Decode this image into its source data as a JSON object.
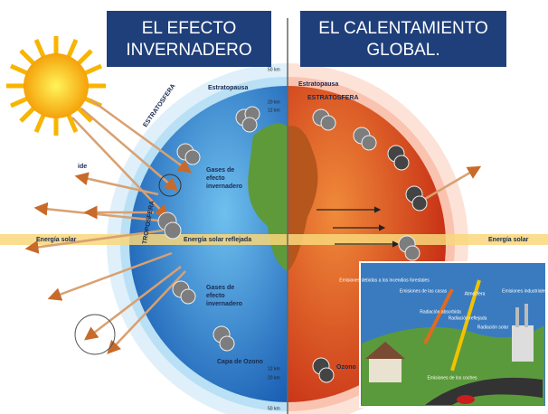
{
  "titles": {
    "left": [
      "EL EFECTO",
      "INVERNADERO"
    ],
    "right": [
      "EL CALENTAMIENTO",
      "GLOBAL."
    ]
  },
  "left_labels": {
    "stratopause": "Estratopausa",
    "stratosphere": "ESTRATOSFERA",
    "troposphere": "TROPOSFERA",
    "gases": [
      "Gases de",
      "efecto",
      "invernadero"
    ],
    "reflected": "Energía solar reflejada",
    "gases_lower": [
      "Gases de",
      "efecto",
      "invernadero"
    ],
    "solar": "Energía solar",
    "ozone_layer": "Capa de Ozono",
    "cut": "ide"
  },
  "right_labels": {
    "stratopause": "Estratopausa",
    "stratosphere": "ESTRATOSFERA",
    "ozone": "Ozono",
    "solar": "Energía solar"
  },
  "altitudes": {
    "top": [
      "50 km",
      "20 km",
      "12 km"
    ],
    "bottom": [
      "12 km",
      "20 km",
      "50 km"
    ]
  },
  "inset": {
    "fires": "Emisiones debidas a los incendios forestales",
    "houses": "Emisiones de las casas",
    "atmosphere": "Atmósfera",
    "industry": "Emisiones industriales",
    "absorbed": "Radiación absorbida",
    "reflected": "Radiación reflejada",
    "solar": "Radiación solar",
    "cars": "Emisiones de los coches"
  }
}
